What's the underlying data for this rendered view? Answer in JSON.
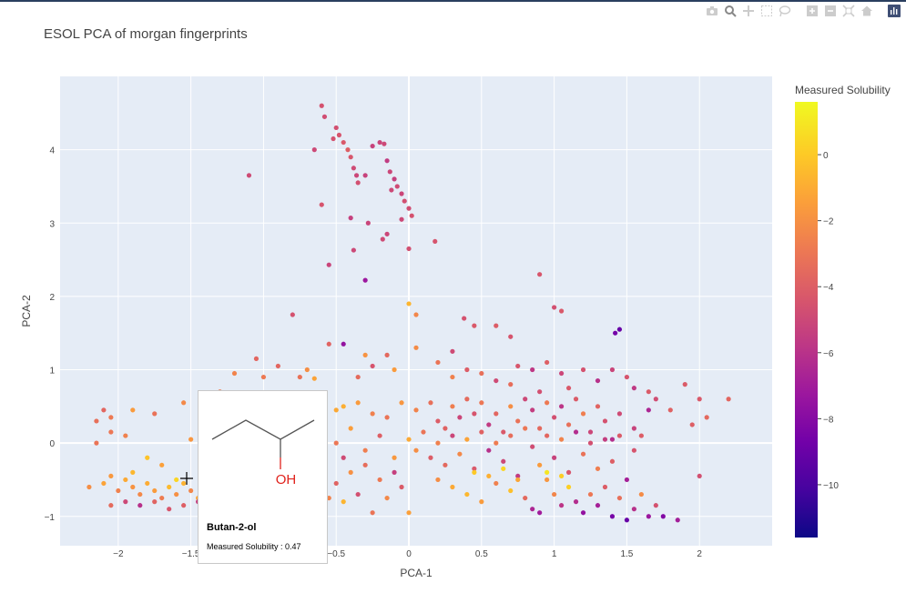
{
  "title": "ESOL PCA of morgan fingerprints",
  "modebar": {
    "buttons": [
      "camera-icon",
      "zoom-icon",
      "pan-icon",
      "box-select-icon",
      "lasso-icon",
      "zoom-in-icon",
      "zoom-out-icon",
      "autoscale-icon",
      "home-icon",
      "plotly-logo-icon"
    ]
  },
  "tooltip": {
    "name": "Butan-2-ol",
    "value_text": "Measured Solubility : 0.47",
    "oh_label": "OH"
  },
  "chart_data": {
    "type": "scatter",
    "title": "ESOL PCA of morgan fingerprints",
    "xlabel": "PCA-1",
    "ylabel": "PCA-2",
    "xlim": [
      -2.4,
      2.5
    ],
    "ylim": [
      -1.4,
      5.0
    ],
    "x_ticks": [
      -2,
      -1.5,
      -1,
      -0.5,
      0,
      0.5,
      1,
      1.5,
      2
    ],
    "y_ticks": [
      -1,
      0,
      1,
      2,
      3,
      4
    ],
    "x_tick_labels": [
      "−2",
      "−1.5",
      "−1",
      "−0.5",
      "0",
      "0.5",
      "1",
      "1.5",
      "2"
    ],
    "y_tick_labels": [
      "−1",
      "0",
      "1",
      "2",
      "3",
      "4"
    ],
    "grid": true,
    "colorbar": {
      "title": "Measured Solubility",
      "range": [
        -11.6,
        1.6
      ],
      "ticks": [
        0,
        -2,
        -4,
        -6,
        -8,
        -10
      ],
      "tick_labels": [
        "0",
        "−2",
        "−4",
        "−6",
        "−8",
        "−10"
      ],
      "colorscale": [
        "#0d0887",
        "#46039f",
        "#7201a8",
        "#9c179e",
        "#bd3786",
        "#d8576b",
        "#ed7953",
        "#fb9f3a",
        "#fdca26",
        "#f0f921"
      ]
    },
    "highlighted_point": {
      "x": -1.6,
      "y": -0.5,
      "value": 0.47,
      "name": "Butan-2-ol"
    },
    "points": [
      [
        -0.6,
        4.6,
        -4.5
      ],
      [
        -0.58,
        4.45,
        -4.7
      ],
      [
        -0.5,
        4.3,
        -4.6
      ],
      [
        -0.48,
        4.2,
        -4.4
      ],
      [
        -0.45,
        4.1,
        -4.2
      ],
      [
        -0.42,
        4.0,
        -3.9
      ],
      [
        -0.4,
        3.9,
        -4.3
      ],
      [
        -0.38,
        3.75,
        -4.8
      ],
      [
        -0.36,
        3.65,
        -5.0
      ],
      [
        -0.65,
        4.0,
        -4.9
      ],
      [
        -0.52,
        4.15,
        -4.5
      ],
      [
        -0.25,
        4.05,
        -5.2
      ],
      [
        -0.2,
        4.1,
        -5.1
      ],
      [
        -0.17,
        4.08,
        -4.9
      ],
      [
        -0.15,
        3.85,
        -5.5
      ],
      [
        -0.13,
        3.7,
        -5.0
      ],
      [
        -0.1,
        3.6,
        -5.3
      ],
      [
        -0.08,
        3.5,
        -4.8
      ],
      [
        -0.05,
        3.4,
        -5.0
      ],
      [
        -0.03,
        3.3,
        -4.6
      ],
      [
        0,
        3.2,
        -4.7
      ],
      [
        0.02,
        3.1,
        -4.5
      ],
      [
        -0.12,
        3.45,
        -4.9
      ],
      [
        -0.3,
        3.65,
        -5.2
      ],
      [
        -0.35,
        3.55,
        -4.6
      ],
      [
        -0.4,
        3.07,
        -5.3
      ],
      [
        -0.28,
        3.0,
        -5.1
      ],
      [
        -0.6,
        3.25,
        -4.4
      ],
      [
        -1.1,
        3.65,
        -4.8
      ],
      [
        -0.38,
        2.63,
        -4.9
      ],
      [
        -0.18,
        2.78,
        -4.8
      ],
      [
        -0.15,
        2.85,
        -5.0
      ],
      [
        -0.05,
        3.05,
        -4.9
      ],
      [
        -0.3,
        2.22,
        -7.2
      ],
      [
        0.0,
        2.65,
        -4.6
      ],
      [
        0.18,
        2.75,
        -4.4
      ],
      [
        -0.55,
        2.43,
        -5.1
      ],
      [
        0.9,
        2.3,
        -4.3
      ],
      [
        1.0,
        1.85,
        -4.6
      ],
      [
        1.05,
        1.8,
        -4.2
      ],
      [
        1.45,
        1.55,
        -9.0
      ],
      [
        1.42,
        1.5,
        -8.6
      ],
      [
        0.0,
        1.9,
        -0.6
      ],
      [
        0.05,
        1.75,
        -2.3
      ],
      [
        -0.8,
        1.75,
        -4.5
      ],
      [
        0.38,
        1.7,
        -4.5
      ],
      [
        0.45,
        1.6,
        -4.2
      ],
      [
        0.6,
        1.6,
        -4.0
      ],
      [
        0.7,
        1.45,
        -4.4
      ],
      [
        -1.05,
        1.15,
        -3.6
      ],
      [
        -1.2,
        0.95,
        -2.4
      ],
      [
        -1.1,
        0.6,
        -2.0
      ],
      [
        -1.3,
        0.7,
        -2.7
      ],
      [
        -1.55,
        0.55,
        -2.2
      ],
      [
        -1.75,
        0.4,
        -3.1
      ],
      [
        -1.9,
        0.45,
        -1.5
      ],
      [
        -2.1,
        0.45,
        -3.6
      ],
      [
        -2.15,
        0.3,
        -3.2
      ],
      [
        -2.05,
        0.35,
        -2.8
      ],
      [
        -1.95,
        0.1,
        -2.5
      ],
      [
        -2.05,
        0.15,
        -2.9
      ],
      [
        -2.15,
        0.0,
        -3.0
      ],
      [
        -0.5,
        0.45,
        -1.0
      ],
      [
        -0.45,
        0.5,
        -0.8
      ],
      [
        -0.35,
        0.55,
        -1.5
      ],
      [
        -0.25,
        0.4,
        -2.5
      ],
      [
        -0.15,
        0.35,
        -3.0
      ],
      [
        -0.05,
        0.55,
        -1.7
      ],
      [
        0.05,
        0.45,
        -2.4
      ],
      [
        0.15,
        0.55,
        -3.2
      ],
      [
        0.2,
        0.3,
        -4.0
      ],
      [
        0.25,
        0.2,
        -3.8
      ],
      [
        0.3,
        0.5,
        -2.6
      ],
      [
        0.35,
        0.35,
        -5.0
      ],
      [
        0.4,
        0.6,
        -3.4
      ],
      [
        0.45,
        0.4,
        -4.4
      ],
      [
        0.5,
        0.55,
        -2.9
      ],
      [
        0.55,
        0.25,
        -5.5
      ],
      [
        0.6,
        0.4,
        -3.6
      ],
      [
        0.65,
        0.15,
        -4.2
      ],
      [
        0.7,
        0.5,
        -2.0
      ],
      [
        0.75,
        0.3,
        -3.1
      ],
      [
        0.8,
        0.6,
        -4.9
      ],
      [
        0.85,
        0.45,
        -5.4
      ],
      [
        0.9,
        0.2,
        -3.5
      ],
      [
        0.95,
        0.55,
        -2.8
      ],
      [
        1.0,
        0.35,
        -4.6
      ],
      [
        1.05,
        0.5,
        -5.8
      ],
      [
        1.1,
        0.25,
        -3.2
      ],
      [
        1.15,
        0.6,
        -4.1
      ],
      [
        1.2,
        0.4,
        -2.6
      ],
      [
        1.25,
        0.15,
        -5.0
      ],
      [
        1.3,
        0.5,
        -3.7
      ],
      [
        1.35,
        0.3,
        -4.5
      ],
      [
        1.4,
        0.05,
        -6.1
      ],
      [
        1.45,
        0.4,
        -4.8
      ],
      [
        1.55,
        0.2,
        -5.2
      ],
      [
        1.6,
        0.1,
        -4.0
      ],
      [
        1.65,
        0.45,
        -6.5
      ],
      [
        1.7,
        0.6,
        -4.7
      ],
      [
        1.8,
        0.45,
        -3.8
      ],
      [
        1.9,
        0.8,
        -4.1
      ],
      [
        2.0,
        0.6,
        -4.2
      ],
      [
        2.05,
        0.35,
        -3.5
      ],
      [
        2.2,
        0.6,
        -3.6
      ],
      [
        1.95,
        0.25,
        -3.9
      ],
      [
        2.0,
        -0.45,
        -4.6
      ],
      [
        0.3,
        0.9,
        -2.5
      ],
      [
        0.4,
        1.0,
        -4.0
      ],
      [
        0.5,
        0.95,
        -3.2
      ],
      [
        0.6,
        0.85,
        -4.8
      ],
      [
        0.7,
        0.8,
        -3.3
      ],
      [
        0.75,
        1.05,
        -4.3
      ],
      [
        0.85,
        1.0,
        -5.7
      ],
      [
        0.9,
        0.7,
        -4.6
      ],
      [
        0.95,
        1.1,
        -3.9
      ],
      [
        1.05,
        0.95,
        -5.0
      ],
      [
        1.1,
        0.75,
        -4.2
      ],
      [
        1.2,
        1.0,
        -4.5
      ],
      [
        1.3,
        0.85,
        -6.0
      ],
      [
        1.4,
        1.0,
        -5.1
      ],
      [
        1.5,
        0.9,
        -4.4
      ],
      [
        1.55,
        0.75,
        -5.6
      ],
      [
        1.65,
        0.7,
        -4.1
      ],
      [
        0.05,
        1.3,
        -2.1
      ],
      [
        0.2,
        1.1,
        -3.0
      ],
      [
        0.3,
        1.25,
        -4.8
      ],
      [
        -0.1,
        1.0,
        -1.5
      ],
      [
        -0.15,
        1.2,
        -3.5
      ],
      [
        -0.35,
        0.9,
        -3.4
      ],
      [
        -0.45,
        1.35,
        -7.5
      ],
      [
        -0.55,
        1.35,
        -3.7
      ],
      [
        -0.7,
        1.0,
        -2.0
      ],
      [
        -0.65,
        0.88,
        -1.2
      ],
      [
        -0.75,
        0.9,
        -3.1
      ],
      [
        -0.9,
        1.05,
        -3.6
      ],
      [
        -1.0,
        0.9,
        -2.8
      ],
      [
        -0.3,
        1.2,
        -1.8
      ],
      [
        -0.25,
        1.05,
        -4.4
      ],
      [
        0.0,
        0.05,
        -1.0
      ],
      [
        0.05,
        -0.1,
        -2.0
      ],
      [
        0.1,
        0.15,
        -3.0
      ],
      [
        0.15,
        -0.2,
        -4.0
      ],
      [
        0.2,
        0.0,
        -2.5
      ],
      [
        0.25,
        -0.3,
        -3.5
      ],
      [
        0.3,
        0.1,
        -5.0
      ],
      [
        0.35,
        -0.15,
        -2.2
      ],
      [
        0.4,
        0.05,
        -1.2
      ],
      [
        0.45,
        -0.35,
        -4.2
      ],
      [
        0.5,
        0.15,
        -3.8
      ],
      [
        0.55,
        -0.1,
        -6.0
      ],
      [
        0.6,
        0.0,
        -2.7
      ],
      [
        0.65,
        -0.25,
        -4.9
      ],
      [
        0.7,
        0.1,
        -3.3
      ],
      [
        0.75,
        -0.45,
        -5.5
      ],
      [
        0.8,
        0.2,
        -2.9
      ],
      [
        0.85,
        -0.05,
        -4.7
      ],
      [
        0.9,
        -0.3,
        -1.5
      ],
      [
        0.95,
        0.1,
        -3.6
      ],
      [
        1.0,
        -0.2,
        -5.2
      ],
      [
        1.05,
        0.05,
        -2.4
      ],
      [
        1.1,
        -0.4,
        -4.3
      ],
      [
        1.15,
        0.15,
        -6.2
      ],
      [
        1.2,
        -0.15,
        -3.1
      ],
      [
        1.25,
        0.0,
        -4.6
      ],
      [
        1.3,
        -0.35,
        -2.6
      ],
      [
        1.35,
        0.05,
        -5.4
      ],
      [
        1.4,
        -0.25,
        -3.9
      ],
      [
        1.45,
        0.1,
        -4.1
      ],
      [
        1.5,
        -0.5,
        -6.8
      ],
      [
        1.55,
        -0.1,
        -4.4
      ],
      [
        0.2,
        -0.5,
        -2.0
      ],
      [
        0.3,
        -0.6,
        -1.0
      ],
      [
        0.4,
        -0.7,
        -0.5
      ],
      [
        0.5,
        -0.8,
        -1.5
      ],
      [
        0.6,
        -0.55,
        -2.5
      ],
      [
        0.7,
        -0.65,
        -0.2
      ],
      [
        0.75,
        -0.5,
        -1.1
      ],
      [
        0.8,
        -0.75,
        -3.5
      ],
      [
        0.85,
        -0.9,
        -6.5
      ],
      [
        0.9,
        -0.95,
        -7.0
      ],
      [
        0.95,
        -0.5,
        -1.7
      ],
      [
        1.0,
        -0.7,
        -2.3
      ],
      [
        1.05,
        -0.85,
        -5.8
      ],
      [
        1.1,
        -0.6,
        0.3
      ],
      [
        1.15,
        -0.8,
        -6.2
      ],
      [
        1.2,
        -0.95,
        -7.5
      ],
      [
        1.25,
        -0.7,
        -2.9
      ],
      [
        1.3,
        -0.85,
        -6.8
      ],
      [
        1.35,
        -0.6,
        -4.0
      ],
      [
        1.4,
        -1.0,
        -8.5
      ],
      [
        1.45,
        -0.75,
        -3.2
      ],
      [
        1.5,
        -1.05,
        -9.0
      ],
      [
        1.55,
        -0.9,
        -6.0
      ],
      [
        1.6,
        -0.7,
        -2.1
      ],
      [
        1.65,
        -1.0,
        -7.2
      ],
      [
        1.7,
        -0.85,
        -4.5
      ],
      [
        1.75,
        -1.0,
        -8.1
      ],
      [
        1.85,
        -1.05,
        -6.9
      ],
      [
        0.45,
        -0.4,
        0.1
      ],
      [
        0.55,
        -0.45,
        -0.8
      ],
      [
        0.65,
        -0.35,
        0.5
      ],
      [
        0.95,
        -0.4,
        1.0
      ],
      [
        1.05,
        -0.45,
        0.2
      ],
      [
        -0.1,
        -0.2,
        -1.6
      ],
      [
        -0.2,
        -0.5,
        -2.8
      ],
      [
        -0.3,
        -0.3,
        -3.3
      ],
      [
        -0.35,
        -0.7,
        -4.6
      ],
      [
        -0.4,
        -0.4,
        -1.9
      ],
      [
        -0.45,
        -0.8,
        -0.6
      ],
      [
        -0.5,
        -0.55,
        -3.7
      ],
      [
        -0.55,
        -0.75,
        -2.4
      ],
      [
        -0.6,
        -0.9,
        -0.3
      ],
      [
        -0.7,
        -0.65,
        -1.2
      ],
      [
        -0.25,
        -0.95,
        -3.0
      ],
      [
        -0.15,
        -0.75,
        -2.2
      ],
      [
        -0.05,
        -0.6,
        -4.1
      ],
      [
        0.0,
        -0.95,
        -1.3
      ],
      [
        -0.1,
        -0.4,
        -5.3
      ],
      [
        -0.3,
        -0.1,
        -2.6
      ],
      [
        -0.2,
        0.1,
        -3.9
      ],
      [
        -0.4,
        0.2,
        -1.4
      ],
      [
        -0.5,
        0.0,
        -2.9
      ],
      [
        -0.45,
        -0.2,
        -4.8
      ],
      [
        -0.6,
        -0.35,
        -1.1
      ],
      [
        -0.65,
        0.1,
        -3.4
      ],
      [
        -2.2,
        -0.6,
        -2.0
      ],
      [
        -2.1,
        -0.55,
        -1.2
      ],
      [
        -2.0,
        -0.65,
        -2.5
      ],
      [
        -1.95,
        -0.5,
        -1.0
      ],
      [
        -1.9,
        -0.6,
        -1.8
      ],
      [
        -1.85,
        -0.7,
        -2.2
      ],
      [
        -1.8,
        -0.55,
        -0.9
      ],
      [
        -1.75,
        -0.65,
        -1.5
      ],
      [
        -1.7,
        -0.75,
        -2.7
      ],
      [
        -1.65,
        -0.6,
        -0.4
      ],
      [
        -1.6,
        -0.7,
        -1.9
      ],
      [
        -1.55,
        -0.55,
        -0.7
      ],
      [
        -1.5,
        -0.65,
        -2.3
      ],
      [
        -1.45,
        -0.75,
        -1.1
      ],
      [
        -1.4,
        -0.6,
        -1.4
      ],
      [
        -1.35,
        -0.7,
        -2.6
      ],
      [
        -1.3,
        -0.5,
        -0.2
      ],
      [
        -2.05,
        -0.85,
        -3.4
      ],
      [
        -1.95,
        -0.8,
        -4.9
      ],
      [
        -1.85,
        -0.85,
        -6.0
      ],
      [
        -1.75,
        -0.8,
        -3.7
      ],
      [
        -1.65,
        -0.9,
        -4.3
      ],
      [
        -1.55,
        -0.85,
        -3.9
      ],
      [
        -1.45,
        -0.8,
        -5.3
      ],
      [
        -1.35,
        -0.9,
        -2.6
      ],
      [
        -1.25,
        -0.85,
        -4.0
      ],
      [
        -2.05,
        -0.45,
        -1.6
      ],
      [
        -1.9,
        -0.4,
        -0.5
      ],
      [
        -1.8,
        -0.2,
        -0.1
      ],
      [
        -1.7,
        -0.3,
        -1.3
      ],
      [
        -1.0,
        0.45,
        -1.0
      ],
      [
        -0.95,
        0.3,
        -2.0
      ],
      [
        -0.9,
        0.2,
        -0.5
      ],
      [
        -0.85,
        0.4,
        -1.6
      ],
      [
        -0.8,
        0.55,
        0.2
      ],
      [
        -0.75,
        0.3,
        -1.2
      ],
      [
        -0.7,
        0.45,
        -2.3
      ],
      [
        -1.2,
        0.3,
        -1.8
      ],
      [
        -1.15,
        0.15,
        0.0
      ],
      [
        -1.3,
        0.0,
        -2.1
      ],
      [
        -1.4,
        0.2,
        -0.8
      ],
      [
        -1.25,
        -0.1,
        -1.4
      ],
      [
        -1.35,
        -0.25,
        -0.3
      ],
      [
        -1.5,
        0.05,
        -1.7
      ]
    ]
  }
}
